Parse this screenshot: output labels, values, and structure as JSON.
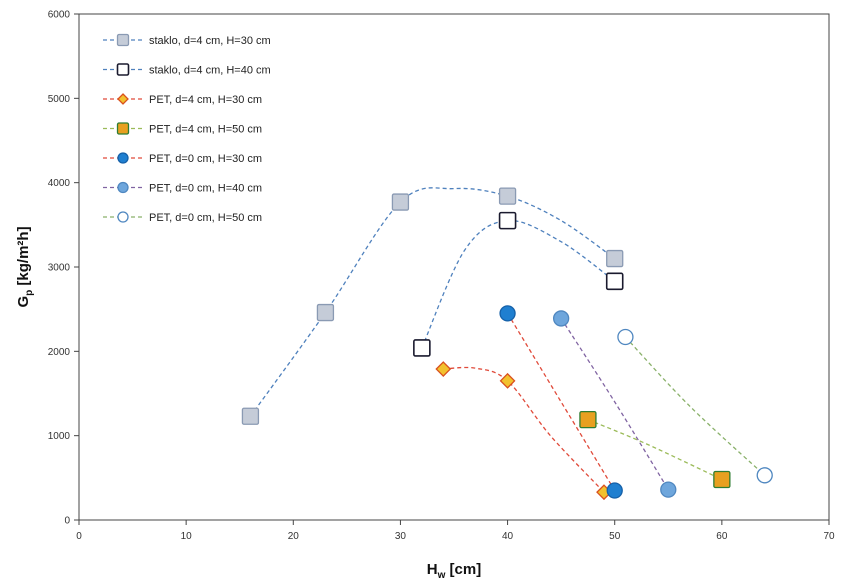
{
  "chart_data": {
    "type": "scatter",
    "xlabel": "H",
    "xlabel_sub": "w",
    "xlabel_unit": " [cm]",
    "ylabel": "G",
    "ylabel_sub": "p",
    "ylabel_unit": "  [kg/m²h]",
    "xlim": [
      0,
      70
    ],
    "ylim": [
      0,
      6000
    ],
    "xticks": [
      0,
      10,
      20,
      30,
      40,
      50,
      60,
      70
    ],
    "yticks": [
      0,
      1000,
      2000,
      3000,
      4000,
      5000,
      6000
    ],
    "grid": false,
    "legend_position": "top-left",
    "series": [
      {
        "name": "staklo, d=4 cm, H=30 cm",
        "marker": "square",
        "fill": "#c5ccd8",
        "stroke": "#8a9ab3",
        "line_color": "#4f81bd",
        "x": [
          16,
          23,
          30,
          40,
          50
        ],
        "y": [
          1230,
          2460,
          3770,
          3840,
          3100
        ],
        "curve": [
          [
            16,
            1230
          ],
          [
            23,
            2460
          ],
          [
            30,
            3770
          ],
          [
            35,
            3930
          ],
          [
            40,
            3840
          ],
          [
            45,
            3550
          ],
          [
            50,
            3100
          ]
        ]
      },
      {
        "name": "staklo, d=4 cm, H=40 cm",
        "marker": "square",
        "fill": "#ffffff",
        "stroke": "#1a1a2e",
        "line_color": "#4f81bd",
        "x": [
          32,
          40,
          50
        ],
        "y": [
          2040,
          3550,
          2830
        ],
        "curve": [
          [
            32,
            2040
          ],
          [
            36,
            3200
          ],
          [
            40,
            3550
          ],
          [
            45,
            3300
          ],
          [
            50,
            2830
          ]
        ]
      },
      {
        "name": "PET, d=4 cm, H=30 cm",
        "marker": "diamond",
        "fill": "#f2c12e",
        "stroke": "#d9501e",
        "line_color": "#e04a3a",
        "x": [
          34,
          40,
          49
        ],
        "y": [
          1790,
          1650,
          330
        ],
        "curve": [
          [
            34,
            1790
          ],
          [
            37,
            1800
          ],
          [
            40,
            1650
          ],
          [
            44,
            1000
          ],
          [
            49,
            330
          ]
        ]
      },
      {
        "name": "PET, d=4 cm, H=50 cm",
        "marker": "square",
        "fill": "#e8a020",
        "stroke": "#2e7d32",
        "line_color": "#9bbb59",
        "x": [
          47.5,
          60
        ],
        "y": [
          1190,
          480
        ],
        "curve": [
          [
            47.5,
            1190
          ],
          [
            53,
            900
          ],
          [
            60,
            480
          ]
        ]
      },
      {
        "name": "PET, d=0 cm, H=30 cm",
        "marker": "circle",
        "fill": "#1f7fd0",
        "stroke": "#1560a8",
        "line_color": "#e04a3a",
        "x": [
          40,
          50
        ],
        "y": [
          2450,
          350
        ],
        "curve": [
          [
            40,
            2450
          ],
          [
            45,
            1400
          ],
          [
            50,
            350
          ]
        ]
      },
      {
        "name": "PET, d=0 cm, H=40 cm",
        "marker": "circle",
        "fill": "#6ea6dc",
        "stroke": "#4f87c0",
        "line_color": "#8064a2",
        "x": [
          45,
          55
        ],
        "y": [
          2390,
          360
        ],
        "curve": [
          [
            45,
            2390
          ],
          [
            50,
            1400
          ],
          [
            55,
            360
          ]
        ]
      },
      {
        "name": "PET, d=0 cm, H=50 cm",
        "marker": "circle",
        "fill": "#ffffff",
        "stroke": "#4f87c0",
        "line_color": "#8ab16a",
        "x": [
          51,
          64
        ],
        "y": [
          2170,
          530
        ],
        "curve": [
          [
            51,
            2170
          ],
          [
            57,
            1350
          ],
          [
            64,
            530
          ]
        ]
      }
    ]
  }
}
